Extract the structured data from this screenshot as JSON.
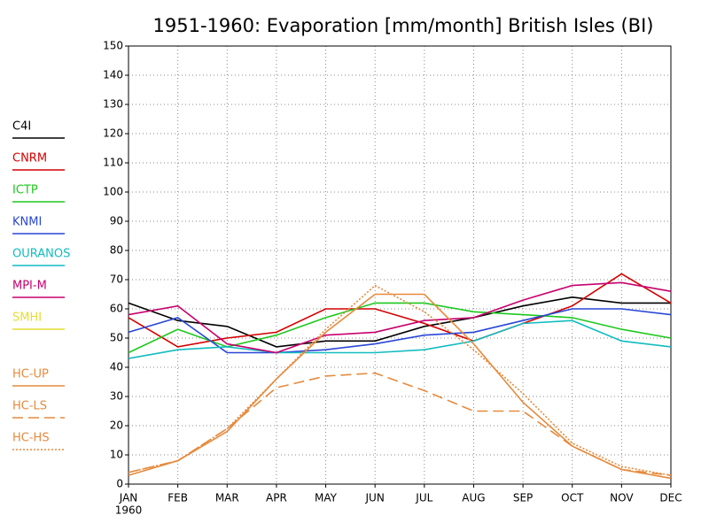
{
  "chart_data": {
    "type": "line",
    "title": "1951-1960: Evaporation [mm/month] British Isles (BI)",
    "categories": [
      "JAN",
      "FEB",
      "MAR",
      "APR",
      "MAY",
      "JUN",
      "JUL",
      "AUG",
      "SEP",
      "OCT",
      "NOV",
      "DEC"
    ],
    "year_label": "1960",
    "ylim": [
      0,
      150
    ],
    "yticks": [
      0,
      10,
      20,
      30,
      40,
      50,
      60,
      70,
      80,
      90,
      100,
      110,
      120,
      130,
      140,
      150
    ],
    "grid": true,
    "series": [
      {
        "name": "C4I",
        "color": "#000000",
        "dash": "solid",
        "values": [
          62,
          56,
          54,
          47,
          49,
          49,
          54,
          57,
          61,
          64,
          62,
          62
        ]
      },
      {
        "name": "CNRM",
        "color": "#d40000",
        "dash": "solid",
        "values": [
          57,
          47,
          50,
          52,
          60,
          60,
          55,
          49,
          55,
          61,
          72,
          62
        ]
      },
      {
        "name": "ICTP",
        "color": "#1ec81e",
        "dash": "solid",
        "values": [
          45,
          53,
          47,
          51,
          57,
          62,
          62,
          59,
          58,
          57,
          53,
          50
        ]
      },
      {
        "name": "KNMI",
        "color": "#2846d6",
        "dash": "solid",
        "values": [
          52,
          57,
          45,
          45,
          46,
          48,
          51,
          52,
          56,
          60,
          60,
          58
        ]
      },
      {
        "name": "OURANOS",
        "color": "#12bcc0",
        "dash": "solid",
        "values": [
          43,
          46,
          47,
          45,
          45,
          45,
          46,
          49,
          55,
          56,
          49,
          47
        ]
      },
      {
        "name": "MPI-M",
        "color": "#c8006e",
        "dash": "solid",
        "values": [
          58,
          61,
          48,
          45,
          51,
          52,
          56,
          57,
          63,
          68,
          69,
          66
        ]
      },
      {
        "name": "SMHI",
        "color": "#e6dc32",
        "dash": "solid",
        "values": [
          null,
          null,
          null,
          null,
          null,
          null,
          null,
          null,
          null,
          null,
          null,
          null
        ]
      },
      {
        "name": "HC-UP",
        "color": "#e68a3c",
        "dash": "solid",
        "values": [
          3,
          8,
          18,
          36,
          52,
          65,
          65,
          48,
          28,
          13,
          5,
          2
        ]
      },
      {
        "name": "HC-LS",
        "color": "#e68a3c",
        "dash": "dashed",
        "values": [
          4,
          8,
          19,
          33,
          37,
          38,
          32,
          25,
          25,
          13,
          5,
          3
        ]
      },
      {
        "name": "HC-HS",
        "color": "#e68a3c",
        "dash": "dotted",
        "values": [
          4,
          8,
          19,
          36,
          53,
          68,
          59,
          46,
          31,
          14,
          6,
          3
        ]
      }
    ]
  }
}
